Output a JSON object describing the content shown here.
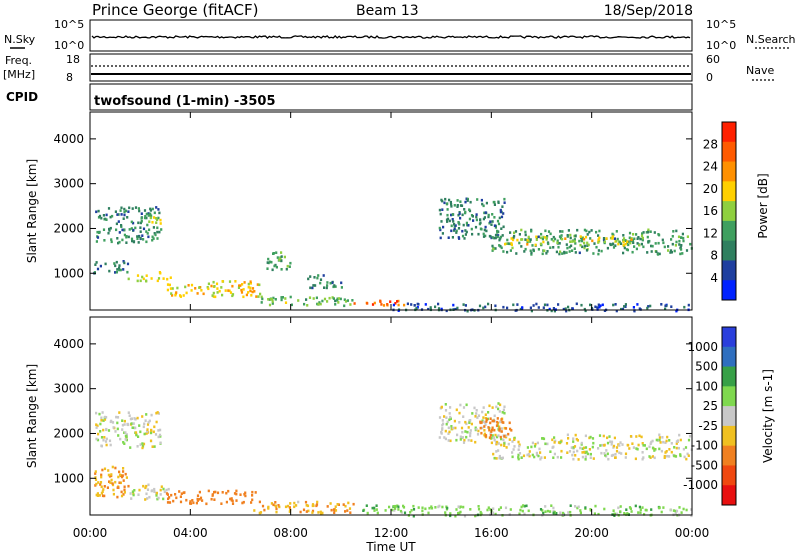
{
  "header": {
    "station": "Prince George (fitACF)",
    "beam": "Beam 13",
    "date": "18/Sep/2018"
  },
  "noise_panel": {
    "left_label": "N.Sky",
    "right_label": "N.Search",
    "left_ticks": [
      "10^5",
      "10^0"
    ],
    "right_ticks": [
      "10^5",
      "10^0"
    ]
  },
  "freq_panel": {
    "left_label_1": "Freq.",
    "left_label_2": "[MHz]",
    "left_ticks": [
      "18",
      "8"
    ],
    "right_label": "Nave",
    "right_ticks": [
      "60",
      "0"
    ]
  },
  "cpid_panel": {
    "label": "CPID",
    "text": "twofsound (1-min) -3505"
  },
  "time_axis": {
    "label": "Time UT",
    "ticks": [
      "00:00",
      "04:00",
      "08:00",
      "12:00",
      "16:00",
      "20:00",
      "00:00"
    ]
  },
  "colors": {
    "power_scale": [
      "#0022ff",
      "#1f3f9f",
      "#2f7f5f",
      "#3f9f5f",
      "#8fcf3f",
      "#ffd000",
      "#ff9000",
      "#ff5a00",
      "#ff2000"
    ],
    "velocity_scale": [
      "#2a3fdc",
      "#2f6fbf",
      "#37a047",
      "#7fd84f",
      "#c8c8c8",
      "#f0c020",
      "#f08020",
      "#f04810",
      "#e81010"
    ],
    "ground_scatter": "#c8c8c8"
  },
  "chart_data": [
    {
      "type": "heatmap",
      "title": "Power",
      "xlabel": "",
      "ylabel": "Slant Range [km]",
      "x_range_hours": [
        0,
        24
      ],
      "ylim": [
        180,
        4600
      ],
      "y_ticks": [
        "1000",
        "2000",
        "3000",
        "4000"
      ],
      "colorbar": {
        "label": "Power [dB]",
        "ticks": [
          "4",
          "8",
          "12",
          "16",
          "20",
          "24",
          "28"
        ],
        "range": [
          0,
          32
        ]
      },
      "regions": [
        {
          "t": [
            0.2,
            2.8
          ],
          "range": [
            1700,
            2500
          ],
          "value": 10
        },
        {
          "t": [
            2.0,
            2.8
          ],
          "range": [
            2100,
            2450
          ],
          "value": 16
        },
        {
          "t": [
            0.1,
            1.5
          ],
          "range": [
            1000,
            1300
          ],
          "value": 8
        },
        {
          "t": [
            1.5,
            3.2
          ],
          "range": [
            850,
            1050
          ],
          "value": 18
        },
        {
          "t": [
            3.0,
            6.8
          ],
          "range": [
            500,
            850
          ],
          "value": 20
        },
        {
          "t": [
            6.5,
            10.5
          ],
          "range": [
            300,
            500
          ],
          "value": 14
        },
        {
          "t": [
            10.5,
            12.5
          ],
          "range": [
            300,
            420
          ],
          "value": 26
        },
        {
          "t": [
            12.0,
            24.0
          ],
          "range": [
            180,
            350
          ],
          "value": 6
        },
        {
          "t": [
            13.9,
            16.5
          ],
          "range": [
            1800,
            2700
          ],
          "value": 9
        },
        {
          "t": [
            16.0,
            24.0
          ],
          "range": [
            1450,
            2000
          ],
          "value": 11
        },
        {
          "t": [
            16.5,
            22.0
          ],
          "range": [
            1650,
            1850
          ],
          "value": 18
        },
        {
          "t": [
            7.0,
            8.0
          ],
          "range": [
            1100,
            1500
          ],
          "value": 12
        },
        {
          "t": [
            8.5,
            10.0
          ],
          "range": [
            700,
            1000
          ],
          "value": 10
        }
      ]
    },
    {
      "type": "heatmap",
      "title": "Velocity",
      "xlabel": "Time UT",
      "ylabel": "Slant Range [km]",
      "x_range_hours": [
        0,
        24
      ],
      "ylim": [
        180,
        4600
      ],
      "y_ticks": [
        "1000",
        "2000",
        "3000",
        "4000"
      ],
      "colorbar": {
        "label": "Velocity [m s-1]",
        "ticks": [
          "1000",
          "500",
          "100",
          "25",
          "-25",
          "-100",
          "-500",
          "-1000"
        ]
      },
      "regions": [
        {
          "t": [
            0.2,
            2.8
          ],
          "range": [
            1700,
            2500
          ],
          "value": 0
        },
        {
          "t": [
            0.1,
            1.5
          ],
          "range": [
            600,
            1300
          ],
          "value": -100
        },
        {
          "t": [
            1.5,
            3.2
          ],
          "range": [
            550,
            900
          ],
          "value": 0
        },
        {
          "t": [
            3.0,
            6.8
          ],
          "range": [
            450,
            750
          ],
          "value": -300
        },
        {
          "t": [
            6.5,
            10.5
          ],
          "range": [
            250,
            500
          ],
          "value": -80
        },
        {
          "t": [
            10.5,
            12.5
          ],
          "range": [
            250,
            420
          ],
          "value": 80
        },
        {
          "t": [
            12.0,
            24.0
          ],
          "range": [
            180,
            420
          ],
          "value": 60
        },
        {
          "t": [
            13.9,
            16.5
          ],
          "range": [
            1800,
            2700
          ],
          "value": 0
        },
        {
          "t": [
            16.0,
            24.0
          ],
          "range": [
            1450,
            2000
          ],
          "value": 0
        },
        {
          "t": [
            15.5,
            16.8
          ],
          "range": [
            1900,
            2400
          ],
          "value": -400
        }
      ]
    }
  ]
}
